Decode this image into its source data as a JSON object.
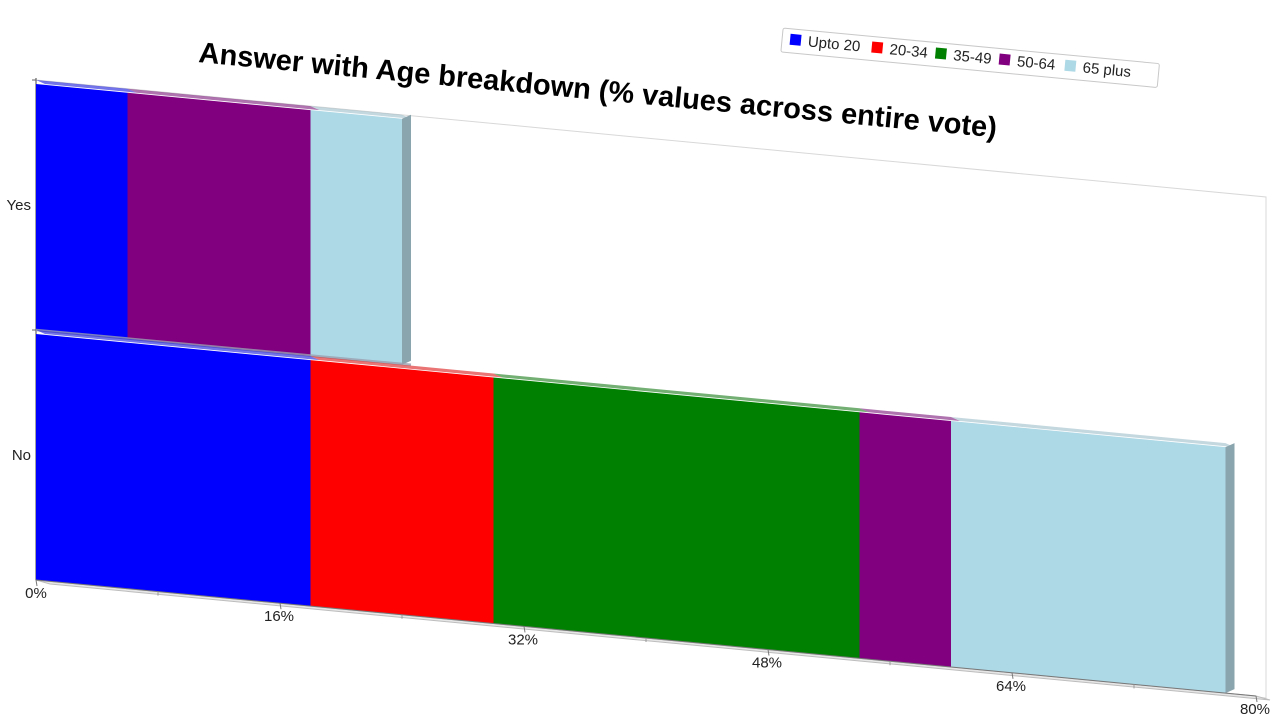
{
  "chart_data": {
    "type": "bar",
    "orientation": "horizontal",
    "stacked": true,
    "title": "Answer with Age breakdown (% values across entire vote)",
    "categories": [
      "Yes",
      "No"
    ],
    "series": [
      {
        "name": "Upto 20",
        "color": "#0000ff",
        "values": [
          6,
          18
        ]
      },
      {
        "name": "20-34",
        "color": "#ff0000",
        "values": [
          0,
          12
        ]
      },
      {
        "name": "35-49",
        "color": "#008000",
        "values": [
          0,
          24
        ]
      },
      {
        "name": "50-64",
        "color": "#800080",
        "values": [
          12,
          6
        ]
      },
      {
        "name": "65 plus",
        "color": "#add8e6",
        "values": [
          6,
          18
        ]
      }
    ],
    "xticks": [
      "0%",
      "16%",
      "32%",
      "48%",
      "64%",
      "80%"
    ],
    "xlim": [
      0,
      80
    ],
    "legend_position": "top-right",
    "grid": false
  }
}
